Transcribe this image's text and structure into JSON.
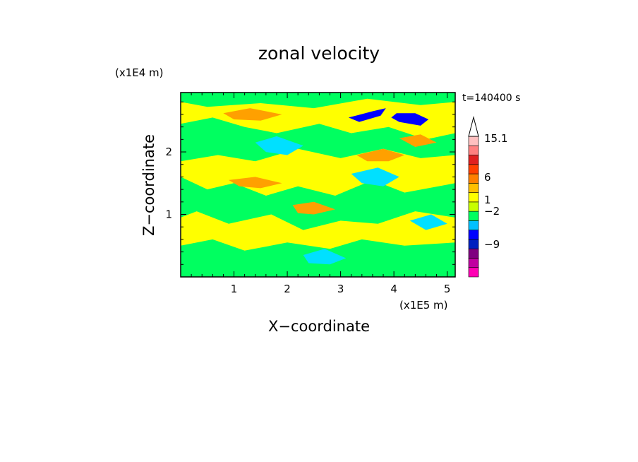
{
  "chart_data": {
    "type": "heatmap",
    "title": "zonal velocity",
    "xlabel": "X−coordinate",
    "ylabel": "Z−coordinate",
    "x_unit": "(x1E5 m)",
    "y_unit": "(x1E4 m)",
    "time_label": "t=140400 s",
    "xlim": [
      0,
      5.15
    ],
    "ylim": [
      0,
      2.95
    ],
    "x_ticks": [
      1,
      2,
      3,
      4,
      5
    ],
    "x_tick_labels": [
      "1",
      "2",
      "3",
      "4",
      "5"
    ],
    "y_ticks": [
      1,
      2
    ],
    "y_tick_labels": [
      "1",
      "2"
    ],
    "colorbar": {
      "labels": [
        "15.1",
        "6",
        "1",
        "−2",
        "−9"
      ],
      "colors": [
        "#ff00b4",
        "#c000a0",
        "#800080",
        "#0020c0",
        "#0000ff",
        "#00c0ff",
        "#00ff60",
        "#c8ff00",
        "#ffff00",
        "#ffc000",
        "#ff8000",
        "#ff4000",
        "#e02020",
        "#ff8080",
        "#ffc0c0"
      ],
      "extend": "max"
    },
    "colors": {
      "base": "#ffff00",
      "green": "#00ff60",
      "cyan": "#00e0ff",
      "blue": "#0000ff",
      "darkblue": "#0020c0",
      "orange": "#ffa000",
      "darkorange": "#ff8000"
    },
    "contour_regions": [
      {
        "color": "green",
        "points": [
          [
            0,
            2.95
          ],
          [
            5.15,
            2.95
          ],
          [
            5.15,
            2.8
          ],
          [
            4.5,
            2.75
          ],
          [
            3.5,
            2.85
          ],
          [
            2.5,
            2.7
          ],
          [
            1.5,
            2.78
          ],
          [
            0.5,
            2.72
          ],
          [
            0,
            2.8
          ]
        ]
      },
      {
        "color": "green",
        "points": [
          [
            0,
            2.45
          ],
          [
            0.6,
            2.55
          ],
          [
            1.2,
            2.4
          ],
          [
            1.8,
            2.3
          ],
          [
            2.6,
            2.45
          ],
          [
            3.2,
            2.3
          ],
          [
            3.9,
            2.4
          ],
          [
            4.6,
            2.2
          ],
          [
            5.15,
            2.3
          ],
          [
            5.15,
            1.95
          ],
          [
            4.5,
            1.9
          ],
          [
            3.8,
            2.05
          ],
          [
            3.0,
            1.9
          ],
          [
            2.2,
            2.05
          ],
          [
            1.4,
            1.85
          ],
          [
            0.7,
            1.95
          ],
          [
            0,
            1.85
          ]
        ]
      },
      {
        "color": "green",
        "points": [
          [
            0,
            1.6
          ],
          [
            0.5,
            1.4
          ],
          [
            1.0,
            1.5
          ],
          [
            1.6,
            1.3
          ],
          [
            2.2,
            1.45
          ],
          [
            2.9,
            1.3
          ],
          [
            3.6,
            1.55
          ],
          [
            4.2,
            1.35
          ],
          [
            5.15,
            1.5
          ],
          [
            5.15,
            0.95
          ],
          [
            4.4,
            1.05
          ],
          [
            3.7,
            0.85
          ],
          [
            3.0,
            0.9
          ],
          [
            2.3,
            0.75
          ],
          [
            1.7,
            1.0
          ],
          [
            0.9,
            0.85
          ],
          [
            0.3,
            1.05
          ],
          [
            0,
            0.95
          ]
        ]
      },
      {
        "color": "green",
        "points": [
          [
            0,
            0.5
          ],
          [
            0.6,
            0.6
          ],
          [
            1.2,
            0.42
          ],
          [
            2.0,
            0.55
          ],
          [
            2.8,
            0.45
          ],
          [
            3.4,
            0.6
          ],
          [
            4.2,
            0.5
          ],
          [
            5.15,
            0.55
          ],
          [
            5.15,
            0
          ],
          [
            0,
            0
          ]
        ]
      },
      {
        "color": "cyan",
        "points": [
          [
            1.4,
            2.15
          ],
          [
            1.8,
            2.25
          ],
          [
            2.3,
            2.1
          ],
          [
            2.0,
            1.95
          ],
          [
            1.6,
            2.0
          ]
        ]
      },
      {
        "color": "cyan",
        "points": [
          [
            3.2,
            1.65
          ],
          [
            3.7,
            1.75
          ],
          [
            4.1,
            1.6
          ],
          [
            3.8,
            1.45
          ],
          [
            3.4,
            1.5
          ]
        ]
      },
      {
        "color": "cyan",
        "points": [
          [
            2.3,
            0.35
          ],
          [
            2.7,
            0.45
          ],
          [
            3.1,
            0.3
          ],
          [
            2.8,
            0.2
          ],
          [
            2.4,
            0.22
          ]
        ]
      },
      {
        "color": "cyan",
        "points": [
          [
            4.3,
            0.9
          ],
          [
            4.7,
            1.0
          ],
          [
            5.0,
            0.85
          ],
          [
            4.6,
            0.75
          ]
        ]
      },
      {
        "color": "blue",
        "points": [
          [
            3.15,
            2.55
          ],
          [
            3.6,
            2.65
          ],
          [
            3.85,
            2.7
          ],
          [
            3.75,
            2.58
          ],
          [
            3.35,
            2.48
          ]
        ]
      },
      {
        "color": "blue",
        "points": [
          [
            4.05,
            2.62
          ],
          [
            4.4,
            2.62
          ],
          [
            4.65,
            2.52
          ],
          [
            4.5,
            2.42
          ],
          [
            4.1,
            2.48
          ],
          [
            3.95,
            2.55
          ]
        ]
      },
      {
        "color": "orange",
        "points": [
          [
            0.8,
            2.62
          ],
          [
            1.3,
            2.7
          ],
          [
            1.9,
            2.6
          ],
          [
            1.5,
            2.5
          ],
          [
            1.0,
            2.52
          ]
        ]
      },
      {
        "color": "orange",
        "points": [
          [
            3.3,
            1.95
          ],
          [
            3.8,
            2.05
          ],
          [
            4.2,
            1.95
          ],
          [
            3.9,
            1.85
          ],
          [
            3.5,
            1.85
          ]
        ]
      },
      {
        "color": "orange",
        "points": [
          [
            0.9,
            1.55
          ],
          [
            1.4,
            1.6
          ],
          [
            1.9,
            1.5
          ],
          [
            1.5,
            1.42
          ],
          [
            1.1,
            1.45
          ]
        ]
      },
      {
        "color": "orange",
        "points": [
          [
            4.1,
            2.22
          ],
          [
            4.5,
            2.28
          ],
          [
            4.8,
            2.15
          ],
          [
            4.4,
            2.08
          ]
        ]
      },
      {
        "color": "orange",
        "points": [
          [
            2.1,
            1.15
          ],
          [
            2.5,
            1.2
          ],
          [
            2.9,
            1.08
          ],
          [
            2.5,
            1.0
          ],
          [
            2.2,
            1.02
          ]
        ]
      }
    ]
  }
}
